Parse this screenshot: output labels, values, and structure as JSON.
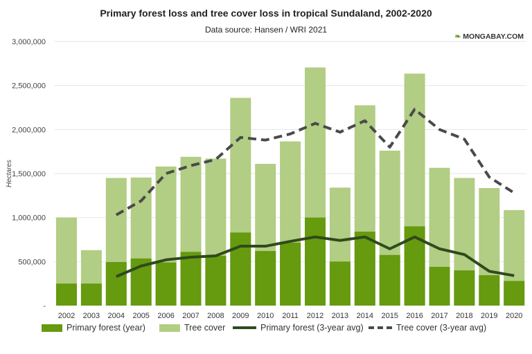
{
  "title": "Primary forest loss and tree cover loss in tropical Sundaland, 2002-2020",
  "subtitle": "Data source: Hansen / WRI 2021",
  "logo": "MONGABAY.COM",
  "chart_data": {
    "type": "bar",
    "title": "Primary forest loss and tree cover loss in tropical Sundaland, 2002-2020",
    "subtitle": "Data source: Hansen / WRI 2021",
    "xlabel": "",
    "ylabel": "Hectares",
    "ylim": [
      0,
      3000000
    ],
    "yticks": [
      0,
      500000,
      1000000,
      1500000,
      2000000,
      2500000,
      3000000
    ],
    "ytick_labels": [
      "-",
      "500,000",
      "1,000,000",
      "1,500,000",
      "2,000,000",
      "2,500,000",
      "3,000,000"
    ],
    "grid": true,
    "legend_position": "bottom",
    "categories": [
      "2002",
      "2003",
      "2004",
      "2005",
      "2006",
      "2007",
      "2008",
      "2009",
      "2010",
      "2011",
      "2012",
      "2013",
      "2014",
      "2015",
      "2016",
      "2017",
      "2018",
      "2019",
      "2020"
    ],
    "series": [
      {
        "name": "Primary forest (year)",
        "type": "bar",
        "color": "#669a0f",
        "values": [
          250000,
          250000,
          495000,
          535000,
          490000,
          610000,
          565000,
          830000,
          620000,
          715000,
          1000000,
          500000,
          840000,
          575000,
          900000,
          440000,
          400000,
          345000,
          280000
        ]
      },
      {
        "name": "Tree cover",
        "type": "bar",
        "color": "#b2cd84",
        "values": [
          1000000,
          630000,
          1450000,
          1455000,
          1580000,
          1690000,
          1670000,
          2360000,
          1610000,
          1865000,
          2705000,
          1340000,
          2275000,
          1760000,
          2635000,
          1565000,
          1450000,
          1335000,
          1085000
        ]
      },
      {
        "name": "Primary forest (3-year avg)",
        "type": "line",
        "color": "#2f4a1c",
        "values": [
          null,
          null,
          330000,
          450000,
          520000,
          550000,
          565000,
          675000,
          675000,
          730000,
          780000,
          740000,
          780000,
          645000,
          780000,
          645000,
          580000,
          390000,
          340000
        ]
      },
      {
        "name": "Tree cover (3-year avg)",
        "type": "line",
        "dashed": true,
        "color": "#4a4a4a",
        "values": [
          null,
          null,
          1030000,
          1190000,
          1500000,
          1590000,
          1660000,
          1910000,
          1880000,
          1950000,
          2070000,
          1970000,
          2100000,
          1800000,
          2230000,
          2000000,
          1890000,
          1460000,
          1280000
        ]
      }
    ]
  }
}
